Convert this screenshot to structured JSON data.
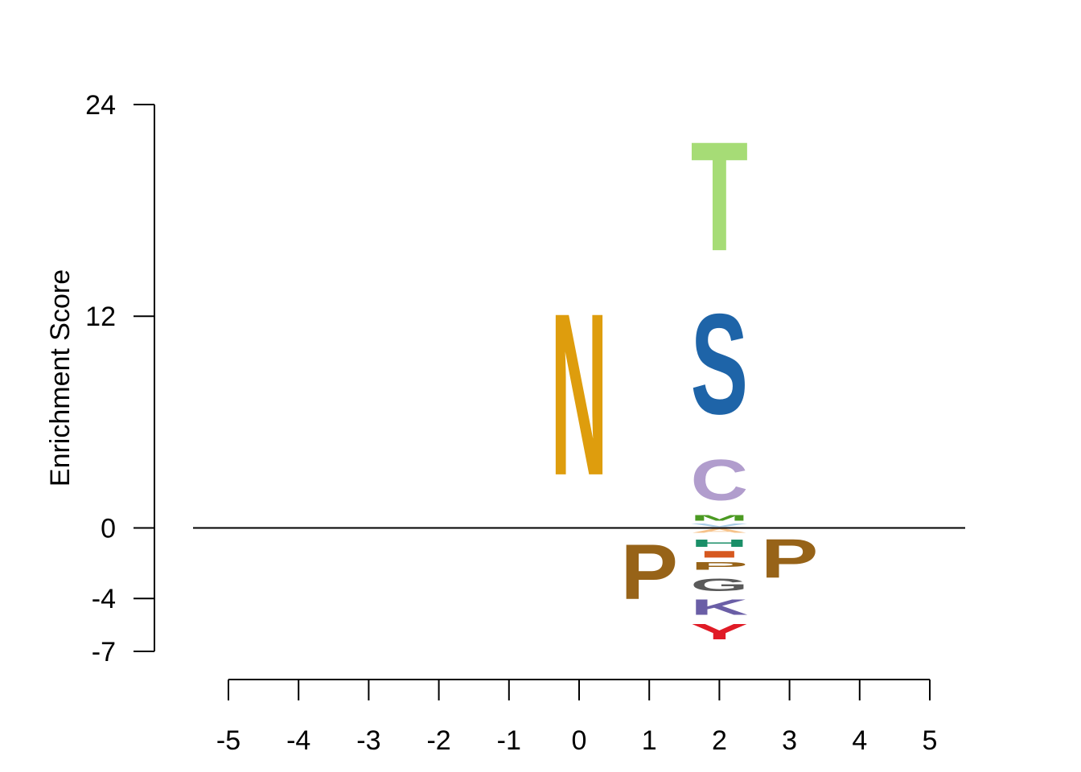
{
  "chart_data": {
    "type": "sequence-logo",
    "ylabel": "Enrichment Score",
    "xlabel": "",
    "title": "",
    "ylim": [
      -7,
      24
    ],
    "y_ticks": [
      24,
      12,
      0,
      -4,
      -7
    ],
    "x_ticks": [
      -5,
      -4,
      -3,
      -2,
      -1,
      0,
      1,
      2,
      3,
      4,
      5
    ],
    "x_tick_labels": [
      "-5",
      "-4",
      "-3",
      "-2",
      "-1",
      "0",
      "1",
      "2",
      "3",
      "4",
      "5"
    ],
    "positions": [
      {
        "x": 0,
        "letters": [
          {
            "letter": "N",
            "bottom": 0.15,
            "top": 14.85,
            "color": "#de9d0d"
          }
        ]
      },
      {
        "x": 1,
        "letters": [
          {
            "letter": "P",
            "bottom": -5.0,
            "top": 0.0,
            "color": "#976318"
          }
        ]
      },
      {
        "x": 2,
        "letters": [
          {
            "letter": "T",
            "bottom": 13.8,
            "top": 23.7,
            "color": "#a6dc76"
          },
          {
            "letter": "S",
            "bottom": 4.7,
            "top": 13.8,
            "color": "#1e64a8"
          },
          {
            "letter": "C",
            "bottom": 0.85,
            "top": 4.55,
            "color": "#b19dcd"
          },
          {
            "letter": "M",
            "bottom": 0.3,
            "top": 0.8,
            "color": "#4b9a22"
          },
          {
            "letter": "V",
            "bottom": 0.0,
            "top": 0.3,
            "color": "#a9cce6"
          },
          {
            "letter": "A",
            "bottom": -0.35,
            "top": 0.0,
            "color": "#f6c28a"
          },
          {
            "letter": "H",
            "bottom": -1.2,
            "top": -0.55,
            "color": "#1b8f68"
          },
          {
            "letter": "I",
            "bottom": -1.8,
            "top": -1.2,
            "color": "#d6581f"
          },
          {
            "letter": "P",
            "bottom": -2.5,
            "top": -1.8,
            "color": "#976318"
          },
          {
            "letter": "G",
            "bottom": -3.8,
            "top": -2.65,
            "color": "#5a5a5a"
          },
          {
            "letter": "K",
            "bottom": -5.2,
            "top": -3.8,
            "color": "#6a5ea6"
          },
          {
            "letter": "Y",
            "bottom": -6.6,
            "top": -5.2,
            "color": "#e01b26"
          }
        ]
      },
      {
        "x": 3,
        "letters": [
          {
            "letter": "P",
            "bottom": -3.5,
            "top": 0.0,
            "color": "#976318"
          }
        ]
      }
    ]
  }
}
